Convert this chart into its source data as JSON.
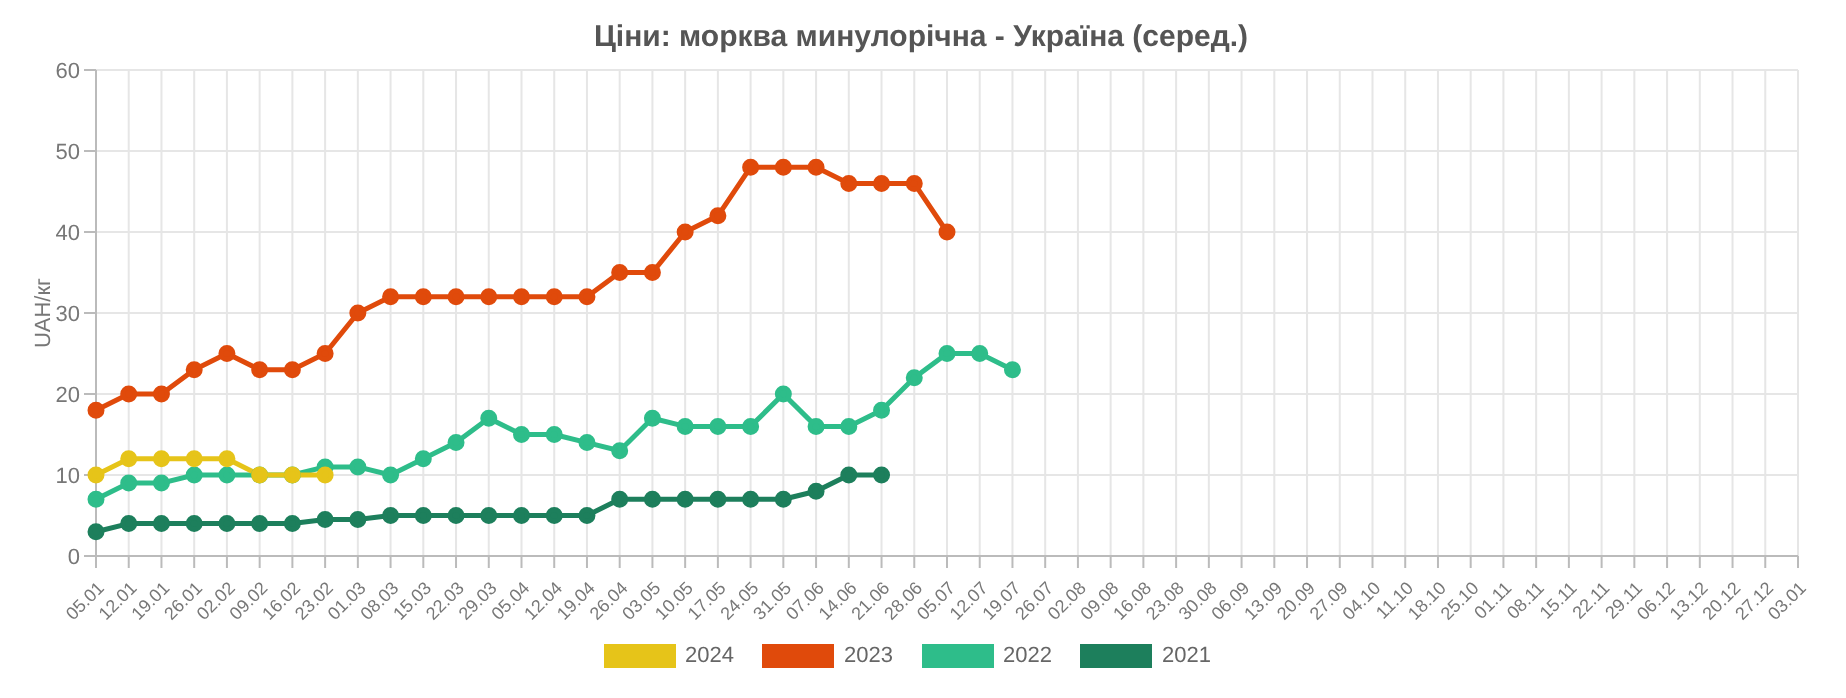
{
  "chart_data": {
    "type": "line",
    "title": "Ціни: морква минулорічна - Україна (серед.)",
    "ylabel": "UAH/кг",
    "categories": [
      "05.01",
      "12.01",
      "19.01",
      "26.01",
      "02.02",
      "09.02",
      "16.02",
      "23.02",
      "01.03",
      "08.03",
      "15.03",
      "22.03",
      "29.03",
      "05.04",
      "12.04",
      "19.04",
      "26.04",
      "03.05",
      "10.05",
      "17.05",
      "24.05",
      "31.05",
      "07.06",
      "14.06",
      "21.06",
      "28.06",
      "05.07",
      "12.07",
      "19.07",
      "26.07",
      "02.08",
      "09.08",
      "16.08",
      "23.08",
      "30.08",
      "06.09",
      "13.09",
      "20.09",
      "27.09",
      "04.10",
      "11.10",
      "18.10",
      "25.10",
      "01.11",
      "08.11",
      "15.11",
      "22.11",
      "29.11",
      "06.12",
      "13.12",
      "20.12",
      "27.12",
      "03.01"
    ],
    "series": [
      {
        "name": "2024",
        "color": "#e6c419",
        "values": [
          10,
          12,
          12,
          12,
          12,
          10,
          10,
          10,
          null,
          null,
          null,
          null,
          null,
          null,
          null,
          null,
          null,
          null,
          null,
          null,
          null,
          null,
          null,
          null,
          null,
          null,
          null,
          null,
          null,
          null,
          null,
          null,
          null,
          null,
          null,
          null,
          null,
          null,
          null,
          null,
          null,
          null,
          null,
          null,
          null,
          null,
          null,
          null,
          null,
          null,
          null,
          null,
          null
        ]
      },
      {
        "name": "2023",
        "color": "#e04a0b",
        "values": [
          18,
          20,
          20,
          23,
          25,
          23,
          23,
          25,
          30,
          32,
          32,
          32,
          32,
          32,
          32,
          32,
          35,
          35,
          40,
          42,
          48,
          48,
          48,
          46,
          46,
          46,
          40,
          null,
          null,
          null,
          null,
          null,
          null,
          null,
          null,
          null,
          null,
          null,
          null,
          null,
          null,
          null,
          null,
          null,
          null,
          null,
          null,
          null,
          null,
          null,
          null,
          null,
          null
        ]
      },
      {
        "name": "2022",
        "color": "#2ebd8a",
        "values": [
          7,
          9,
          9,
          10,
          10,
          10,
          10,
          11,
          11,
          10,
          12,
          14,
          17,
          15,
          15,
          14,
          13,
          17,
          16,
          16,
          16,
          20,
          16,
          16,
          18,
          22,
          25,
          25,
          23,
          null,
          null,
          null,
          null,
          null,
          null,
          null,
          null,
          null,
          null,
          null,
          null,
          null,
          null,
          null,
          null,
          null,
          null,
          null,
          null,
          null,
          null,
          null,
          null
        ]
      },
      {
        "name": "2021",
        "color": "#1d7f5c",
        "values": [
          3,
          4,
          4,
          4,
          4,
          4,
          4,
          4.5,
          4.5,
          5,
          5,
          5,
          5,
          5,
          5,
          5,
          7,
          7,
          7,
          7,
          7,
          7,
          8,
          10,
          10,
          null,
          null,
          null,
          null,
          null,
          null,
          null,
          null,
          null,
          null,
          null,
          null,
          null,
          null,
          null,
          null,
          null,
          null,
          null,
          null,
          null,
          null,
          null,
          null,
          null,
          null,
          null,
          null
        ]
      }
    ],
    "ylim": [
      0,
      60
    ],
    "yticks": [
      0,
      10,
      20,
      30,
      40,
      50,
      60
    ],
    "grid": true,
    "legend": "bottom",
    "marker": "circle",
    "line_style": "solid"
  }
}
